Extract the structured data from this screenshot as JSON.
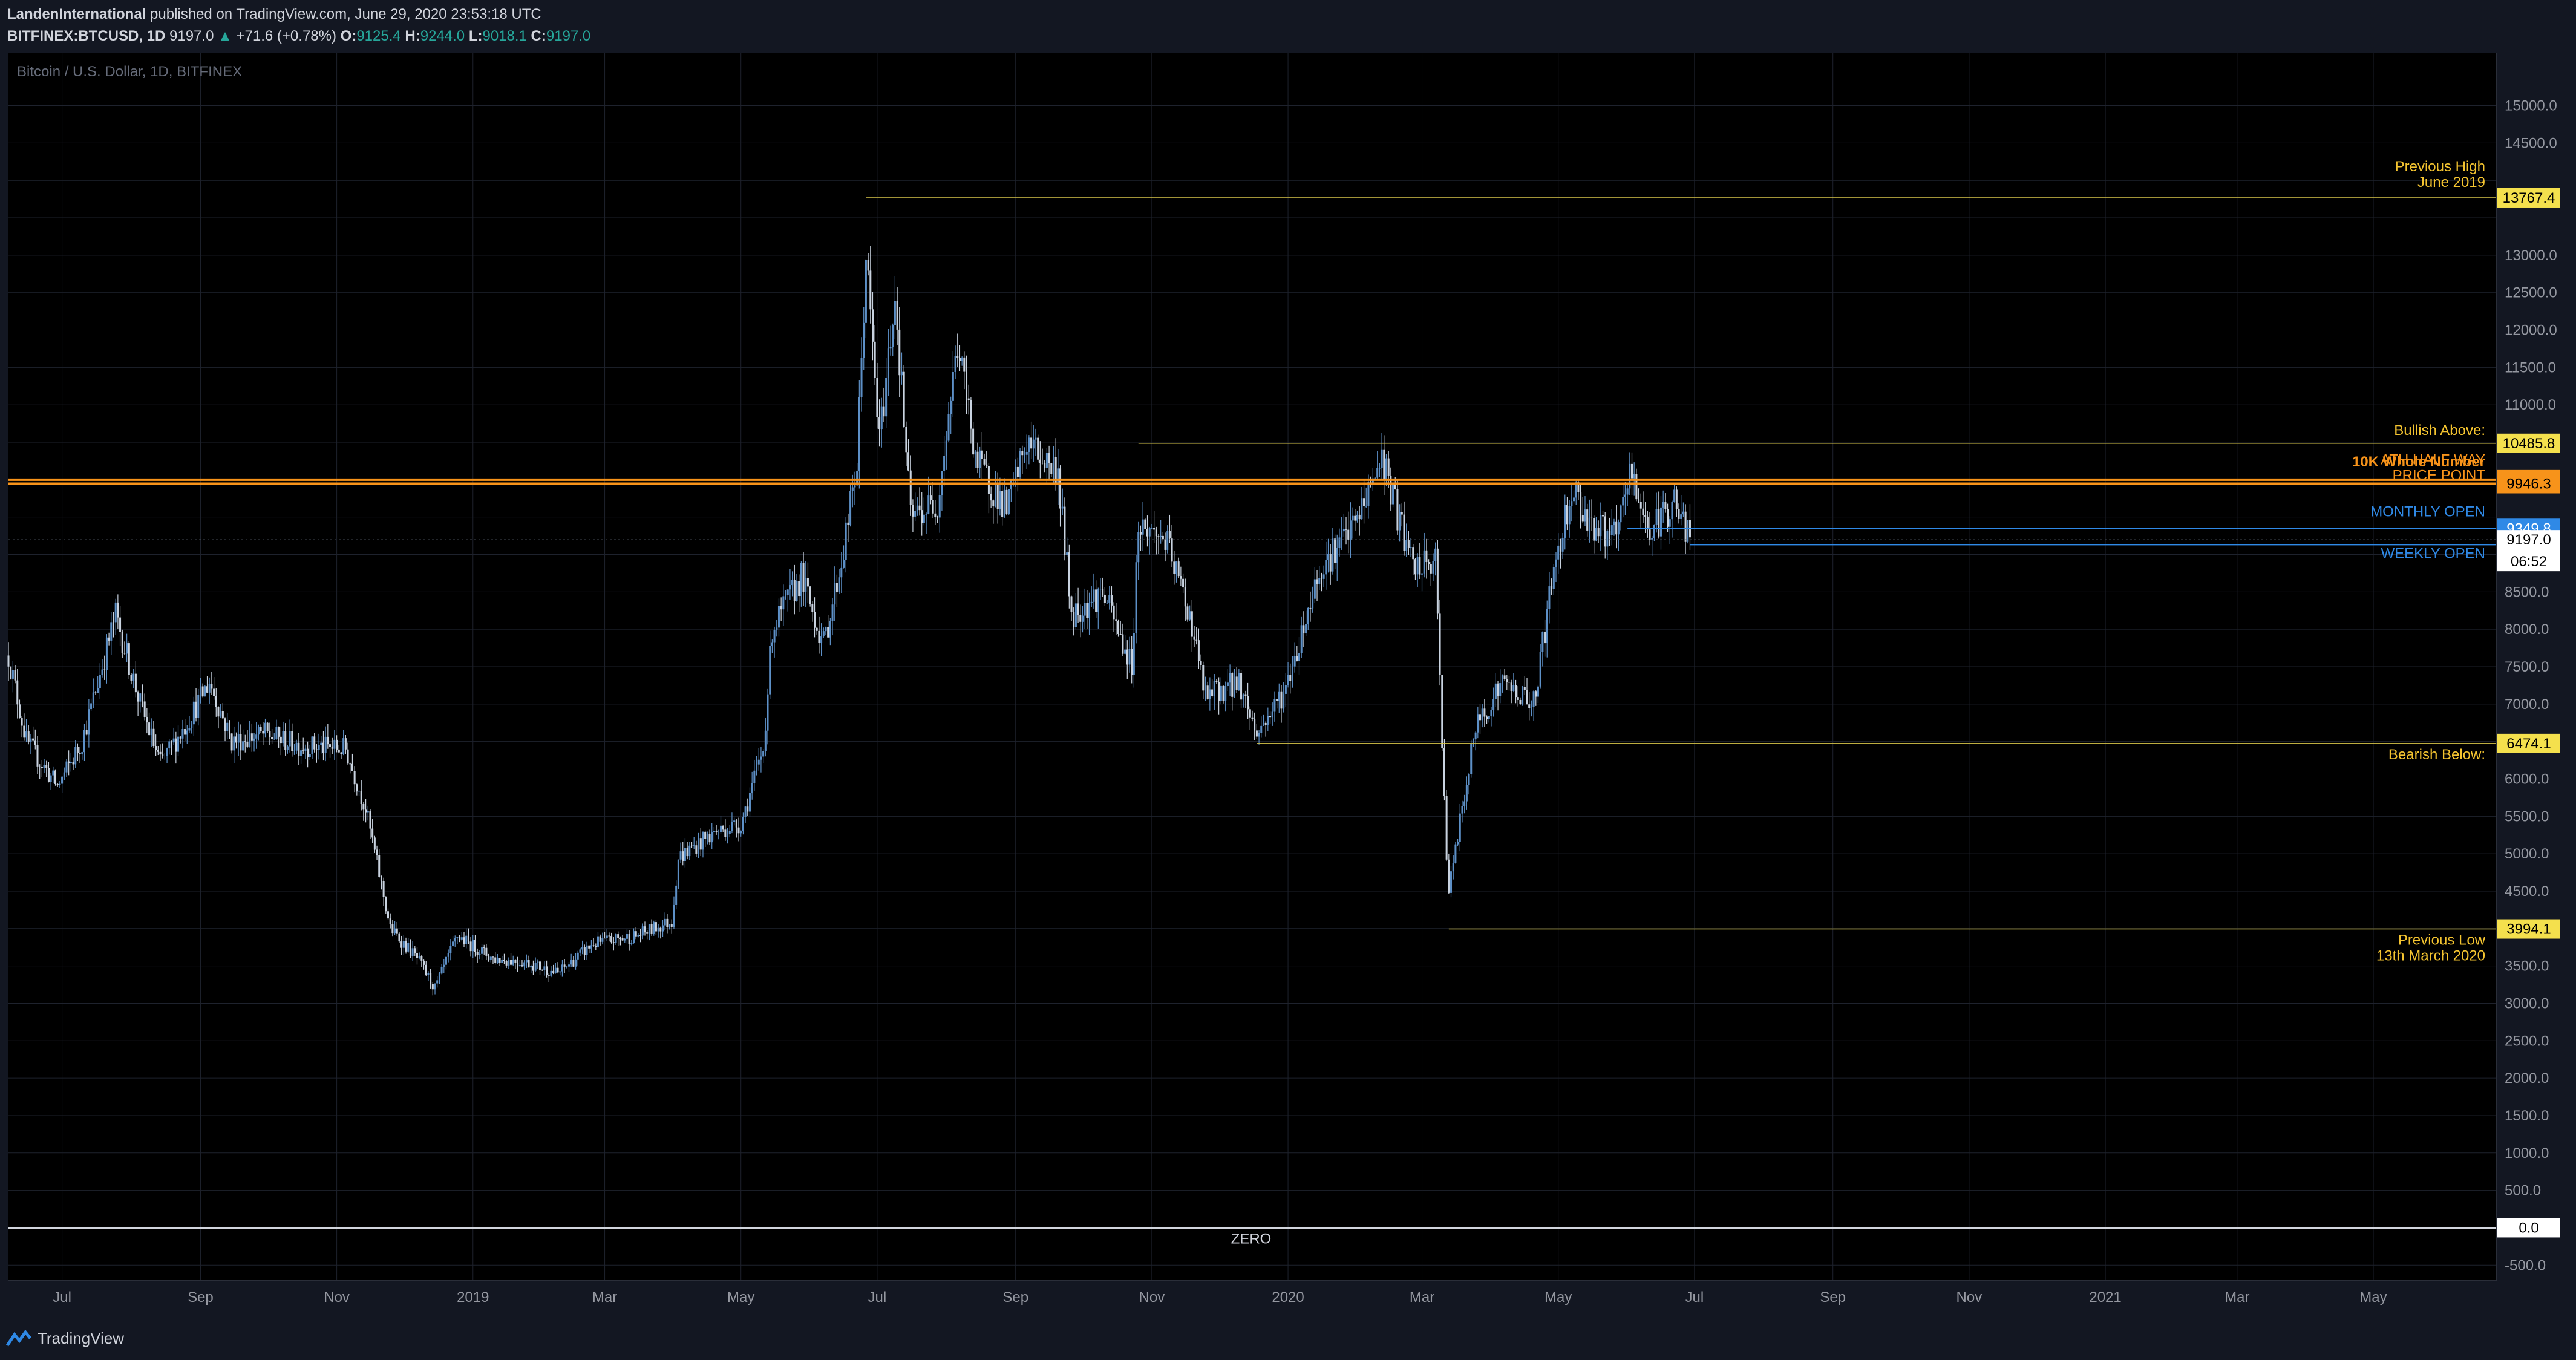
{
  "header": {
    "publisher": "LandenInternational",
    "published_text": "published on TradingView.com, June 29, 2020 23:53:18 UTC",
    "symbol": "BITFINEX:BTCUSD, 1D",
    "last": "9197.0",
    "arrow": "▲",
    "change": "+71.6 (+0.78%)",
    "o_label": "O:",
    "o_value": "9125.4",
    "h_label": "H:",
    "h_value": "9244.0",
    "l_label": "L:",
    "l_value": "9018.1",
    "c_label": "C:",
    "c_value": "9197.0"
  },
  "footer": {
    "brand": "TradingView"
  },
  "colors": {
    "background": "#131722",
    "plot_background": "#000000",
    "grid": "#1e222d",
    "candle": "#5d90c7",
    "candle_light": "#c9d3e0",
    "yellow_level": "#d8c64a",
    "orange_level": "#f7931a",
    "blue_level": "#2f89e6",
    "zero_line": "#d1d4dc"
  },
  "chart_data": {
    "type": "candlestick",
    "title": "Bitcoin / U.S. Dollar, 1D, BITFINEX",
    "x_ticks": [
      "Jul",
      "Sep",
      "Nov",
      "2019",
      "Mar",
      "May",
      "Jul",
      "Sep",
      "Nov",
      "2020",
      "Mar",
      "May",
      "Jul",
      "Sep",
      "Nov",
      "2021",
      "Mar",
      "May"
    ],
    "x_tick_dates": [
      "2018-07-01",
      "2018-09-01",
      "2018-11-01",
      "2019-01-01",
      "2019-03-01",
      "2019-05-01",
      "2019-07-01",
      "2019-09-01",
      "2019-11-01",
      "2020-01-01",
      "2020-03-01",
      "2020-05-01",
      "2020-07-01",
      "2020-09-01",
      "2020-11-01",
      "2021-01-01",
      "2021-03-01",
      "2021-05-01"
    ],
    "x_range": [
      "2018-06-07",
      "2021-06-25"
    ],
    "y_range": [
      -700,
      15700
    ],
    "y_ticks": [
      -500,
      0,
      500,
      1000,
      1500,
      2000,
      2500,
      3000,
      3500,
      4000,
      4500,
      5000,
      5500,
      6000,
      6500,
      7000,
      7500,
      8000,
      8500,
      9000,
      9500,
      10000,
      10500,
      11000,
      11500,
      12000,
      12500,
      13000,
      13500,
      14000,
      14500,
      15000
    ],
    "y_tick_labels": [
      "-500.0",
      "0.0",
      "500.0",
      "1000.0",
      "1500.0",
      "2000.0",
      "2500.0",
      "3000.0",
      "3500.0",
      "4000.0",
      "4500.0",
      "5000.0",
      "5500.0",
      "6000.0",
      "6500.0",
      "7000.0",
      "7500.0",
      "8000.0",
      "8500.0",
      "9000.0",
      "9500.0",
      "10000.0",
      "10500.0",
      "11000.0",
      "11500.0",
      "12000.0",
      "12500.0",
      "13000.0",
      "13500.0",
      "14000.0",
      "14500.0",
      "15000.0"
    ],
    "hidden_y_ticks": [
      0,
      6500,
      9000,
      9500,
      10000,
      10500,
      13500,
      14000,
      4000
    ],
    "grid": true,
    "price_path": [
      [
        "2018-06-07",
        7650
      ],
      [
        "2018-06-15",
        6500
      ],
      [
        "2018-06-29",
        5900
      ],
      [
        "2018-07-10",
        6500
      ],
      [
        "2018-07-25",
        8200
      ],
      [
        "2018-08-05",
        7000
      ],
      [
        "2018-08-14",
        6200
      ],
      [
        "2018-08-25",
        6700
      ],
      [
        "2018-09-05",
        7300
      ],
      [
        "2018-09-15",
        6500
      ],
      [
        "2018-09-30",
        6600
      ],
      [
        "2018-10-15",
        6450
      ],
      [
        "2018-11-05",
        6400
      ],
      [
        "2018-11-14",
        5600
      ],
      [
        "2018-11-25",
        4000
      ],
      [
        "2018-12-07",
        3600
      ],
      [
        "2018-12-15",
        3200
      ],
      [
        "2018-12-25",
        3900
      ],
      [
        "2019-01-10",
        3600
      ],
      [
        "2019-01-25",
        3550
      ],
      [
        "2019-02-08",
        3400
      ],
      [
        "2019-02-24",
        3800
      ],
      [
        "2019-03-15",
        3900
      ],
      [
        "2019-03-31",
        4100
      ],
      [
        "2019-04-03",
        4950
      ],
      [
        "2019-04-20",
        5300
      ],
      [
        "2019-05-01",
        5400
      ],
      [
        "2019-05-11",
        6400
      ],
      [
        "2019-05-15",
        8000
      ],
      [
        "2019-05-28",
        8700
      ],
      [
        "2019-06-07",
        7800
      ],
      [
        "2019-06-15",
        8900
      ],
      [
        "2019-06-22",
        10200
      ],
      [
        "2019-06-26",
        13000
      ],
      [
        "2019-07-02",
        10500
      ],
      [
        "2019-07-09",
        12500
      ],
      [
        "2019-07-16",
        9500
      ],
      [
        "2019-07-28",
        9700
      ],
      [
        "2019-08-06",
        11800
      ],
      [
        "2019-08-15",
        10200
      ],
      [
        "2019-08-28",
        9600
      ],
      [
        "2019-09-06",
        10500
      ],
      [
        "2019-09-20",
        10100
      ],
      [
        "2019-09-26",
        8200
      ],
      [
        "2019-10-10",
        8500
      ],
      [
        "2019-10-23",
        7500
      ],
      [
        "2019-10-26",
        9400
      ],
      [
        "2019-11-07",
        9200
      ],
      [
        "2019-11-18",
        8200
      ],
      [
        "2019-11-25",
        7100
      ],
      [
        "2019-12-10",
        7300
      ],
      [
        "2019-12-18",
        6600
      ],
      [
        "2019-12-31",
        7200
      ],
      [
        "2020-01-15",
        8800
      ],
      [
        "2020-01-31",
        9400
      ],
      [
        "2020-02-12",
        10300
      ],
      [
        "2020-02-26",
        8800
      ],
      [
        "2020-03-07",
        8900
      ],
      [
        "2020-03-12",
        5000
      ],
      [
        "2020-03-13",
        4500
      ],
      [
        "2020-03-25",
        6700
      ],
      [
        "2020-04-06",
        7300
      ],
      [
        "2020-04-20",
        7000
      ],
      [
        "2020-04-29",
        8800
      ],
      [
        "2020-05-07",
        9900
      ],
      [
        "2020-05-16",
        9400
      ],
      [
        "2020-05-27",
        9200
      ],
      [
        "2020-06-02",
        10100
      ],
      [
        "2020-06-11",
        9300
      ],
      [
        "2020-06-22",
        9700
      ],
      [
        "2020-06-29",
        9197
      ]
    ],
    "levels": [
      {
        "label": "Previous High\nJune 2019",
        "value": 13767.4,
        "value_label": "13767.4",
        "start": "2019-06-26",
        "color": "#d8c64a",
        "label_color": "#f4c430"
      },
      {
        "label": "Bullish Above:",
        "value": 10485.8,
        "value_label": "10485.8",
        "start": "2019-10-26",
        "color": "#d8c64a",
        "label_color": "#f4c430"
      },
      {
        "label": "10K Whole Number",
        "value": 10000.0,
        "value_label": "10000.0",
        "start": "2018-06-07",
        "color": "#f7931a",
        "label_color": "#f7931a"
      },
      {
        "label": "ATH HALF WAY\nPRICE POINT",
        "value": 9946.3,
        "value_label": "9946.3",
        "start": "2018-06-07",
        "color": "#f7931a",
        "label_color": "#f7931a"
      },
      {
        "label": "MONTHLY OPEN",
        "value": 9349.8,
        "value_label": "9349.8",
        "start": "2020-06-01",
        "color": "#2f89e6",
        "label_color": "#2f89e6"
      },
      {
        "label": "WEEKLY OPEN",
        "value": 9128.6,
        "value_label": "9128.6",
        "start": "2020-06-29",
        "color": "#2f89e6",
        "label_color": "#2f89e6"
      },
      {
        "label": "Bearish Below:",
        "value": 6474.1,
        "value_label": "6474.1",
        "start": "2019-12-18",
        "color": "#d8c64a",
        "label_color": "#f4c430"
      },
      {
        "label": "Previous Low\n13th March 2020",
        "value": 3994.1,
        "value_label": "3994.1",
        "start": "2020-03-13",
        "color": "#d8c64a",
        "label_color": "#f4c430"
      },
      {
        "label": "ZERO",
        "value": 0.0,
        "value_label": "0.0",
        "start": "2018-06-07",
        "color": "#d1d4dc",
        "label_color": "#d1d4dc"
      }
    ],
    "last_price": {
      "value": 9197.0,
      "value_label": "9197.0",
      "countdown": "06:52"
    }
  }
}
